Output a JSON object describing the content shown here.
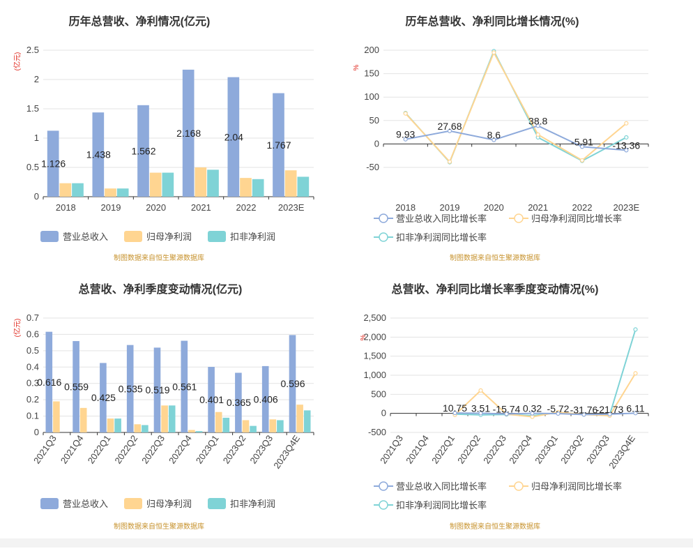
{
  "chart_data": [
    {
      "type": "bar",
      "title": "历年总营收、净利情况(亿元)",
      "ylabel": "(亿元)",
      "ylim": [
        0,
        2.5
      ],
      "yticks": [
        "0",
        "0.5",
        "1",
        "1.5",
        "2",
        "2.5"
      ],
      "categories": [
        "2018",
        "2019",
        "2020",
        "2021",
        "2022",
        "2023E"
      ],
      "series": [
        {
          "name": "营业总收入",
          "color": "#8eaadb",
          "values": [
            1.126,
            1.438,
            1.562,
            2.168,
            2.04,
            1.767
          ],
          "labels": [
            "1.126",
            "1.438",
            "1.562",
            "2.168",
            "2.04",
            "1.767"
          ]
        },
        {
          "name": "归母净利润",
          "color": "#ffd591",
          "values": [
            0.23,
            0.14,
            0.41,
            0.5,
            0.32,
            0.45
          ]
        },
        {
          "name": "扣非净利润",
          "color": "#7fd3d6",
          "values": [
            0.23,
            0.14,
            0.41,
            0.46,
            0.3,
            0.34
          ]
        }
      ],
      "source": "制图数据来自恒生聚源数据库"
    },
    {
      "type": "line",
      "title": "历年总营收、净利同比增长情况(%)",
      "ylabel": "%",
      "ylim": [
        -50,
        200
      ],
      "yticks": [
        "-50",
        "0",
        "50",
        "100",
        "150",
        "200"
      ],
      "categories": [
        "2018",
        "2019",
        "2020",
        "2021",
        "2022",
        "2023E"
      ],
      "series": [
        {
          "name": "营业总收入同比增长率",
          "color": "#8eaadb",
          "values": [
            9.93,
            27.68,
            8.6,
            38.8,
            -5.91,
            -13.36
          ],
          "labels": [
            "9.93",
            "27.68",
            "8.6",
            "38.8",
            "-5.91",
            "-13.36"
          ]
        },
        {
          "name": "归母净利润同比增长率",
          "color": "#ffd591",
          "values": [
            65,
            -38,
            195,
            20,
            -35,
            44
          ]
        },
        {
          "name": "扣非净利润同比增长率",
          "color": "#7fd3d6",
          "values": [
            66,
            -39,
            198,
            14,
            -36,
            14
          ]
        }
      ],
      "source": "制图数据来自恒生聚源数据库"
    },
    {
      "type": "bar",
      "title": "总营收、净利季度变动情况(亿元)",
      "ylabel": "(亿元)",
      "ylim": [
        0,
        0.7
      ],
      "yticks": [
        "0",
        "0.1",
        "0.2",
        "0.3",
        "0.4",
        "0.5",
        "0.6",
        "0.7"
      ],
      "categories": [
        "2021Q3",
        "2021Q4",
        "2022Q1",
        "2022Q2",
        "2022Q3",
        "2022Q4",
        "2023Q1",
        "2023Q2",
        "2023Q3",
        "2023Q4E"
      ],
      "series": [
        {
          "name": "营业总收入",
          "color": "#8eaadb",
          "values": [
            0.616,
            0.559,
            0.425,
            0.535,
            0.519,
            0.561,
            0.401,
            0.365,
            0.406,
            0.596
          ],
          "labels": [
            "0.616",
            "0.559",
            "0.425",
            "0.535",
            "0.519",
            "0.561",
            "0.401",
            "0.365",
            "0.406",
            "0.596"
          ]
        },
        {
          "name": "归母净利润",
          "color": "#ffd591",
          "values": [
            0.19,
            0.15,
            0.085,
            0.05,
            0.165,
            0.015,
            0.125,
            0.075,
            0.08,
            0.17
          ]
        },
        {
          "name": "扣非净利润",
          "color": "#7fd3d6",
          "values": [
            0,
            0,
            0.085,
            0.045,
            0.165,
            0.008,
            0.09,
            0.04,
            0.075,
            0.135
          ]
        }
      ],
      "source": "制图数据来自恒生聚源数据库"
    },
    {
      "type": "line",
      "title": "总营收、净利同比增长率季度变动情况(%)",
      "ylabel": "%",
      "ylim": [
        -500,
        2500
      ],
      "yticks": [
        "-500",
        "0",
        "500",
        "1,000",
        "1,500",
        "2,000",
        "2,500"
      ],
      "categories": [
        "2021Q3",
        "2021Q4",
        "2022Q1",
        "2022Q2",
        "2022Q3",
        "2022Q4",
        "2023Q1",
        "2023Q2",
        "2023Q3",
        "2023Q4E"
      ],
      "series": [
        {
          "name": "营业总收入同比增长率",
          "color": "#8eaadb",
          "values": [
            null,
            null,
            10.75,
            3.51,
            -15.74,
            0.32,
            -5.72,
            -31.76,
            -21.73,
            6.11
          ],
          "labels": [
            "",
            "",
            "10.75",
            "3.51",
            "-15.74",
            "0.32",
            "-5.72",
            "-31.76",
            "-21.73",
            "6.11"
          ]
        },
        {
          "name": "归母净利润同比增长率",
          "color": "#ffd591",
          "values": [
            null,
            null,
            -40,
            600,
            -20,
            -90,
            30,
            -30,
            -60,
            1050
          ]
        },
        {
          "name": "扣非净利润同比增长率",
          "color": "#7fd3d6",
          "values": [
            null,
            null,
            -20,
            -40,
            -30,
            -60,
            20,
            -30,
            -40,
            2200
          ]
        }
      ],
      "source": "制图数据来自恒生聚源数据库"
    }
  ]
}
